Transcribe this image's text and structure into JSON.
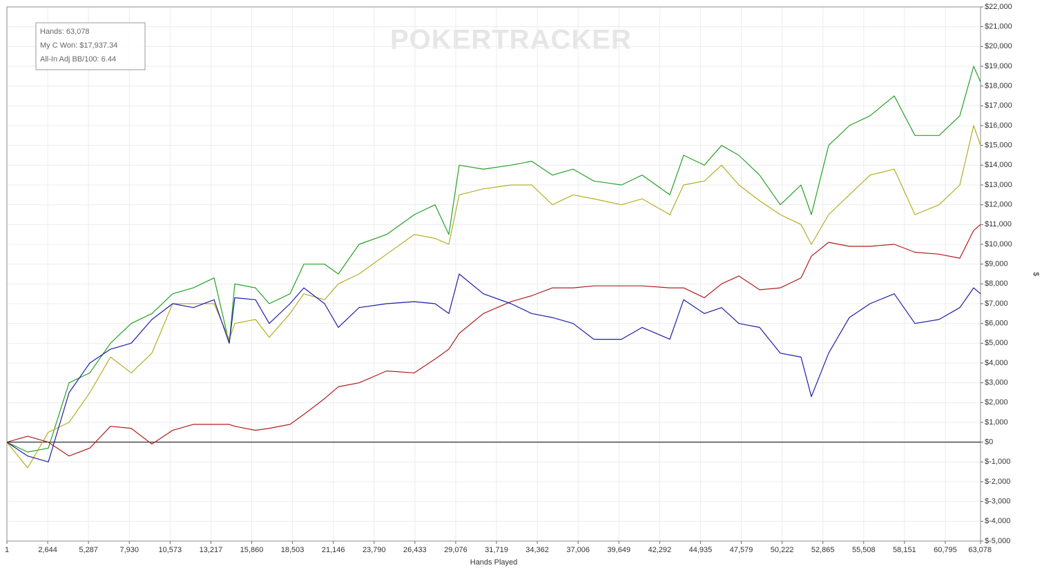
{
  "chart_data": {
    "type": "line",
    "xlabel": "Hands Played",
    "ylabel": "$",
    "watermark": "POKERTRACKER",
    "annotations": [
      "Hands: 63,078",
      "My C Won: $17,937.34",
      "All-In Adj BB/100: 6.44"
    ],
    "x": [
      1,
      1343,
      2685,
      4027,
      5369,
      6711,
      8053,
      9395,
      10737,
      12079,
      13421,
      14405,
      14763,
      16106,
      16995,
      18342,
      19236,
      20579,
      21474,
      22816,
      24605,
      26395,
      27737,
      28632,
      29303,
      30869,
      32658,
      34000,
      35342,
      36684,
      38026,
      39816,
      41158,
      42947,
      43842,
      45184,
      46302,
      47421,
      48763,
      50105,
      51447,
      52118,
      53237,
      54579,
      55921,
      57487,
      58829,
      60395,
      61737,
      62631,
      63078
    ],
    "series": [
      {
        "color": "#24a024",
        "values": [
          0,
          -500,
          -300,
          3000,
          3500,
          5000,
          6000,
          6500,
          7500,
          7800,
          8300,
          5000,
          8000,
          7800,
          7000,
          7500,
          9000,
          9000,
          8500,
          10000,
          10500,
          11500,
          12000,
          10500,
          14000,
          13800,
          14000,
          14200,
          13500,
          13800,
          13200,
          13000,
          13500,
          12500,
          14500,
          14000,
          15000,
          14500,
          13500,
          12000,
          13000,
          11500,
          15000,
          16000,
          16500,
          17500,
          15500,
          15500,
          16500,
          19000,
          18200
        ]
      },
      {
        "color": "#b3ad22",
        "values": [
          0,
          -1300,
          500,
          1000,
          2500,
          4300,
          3500,
          4500,
          7000,
          7000,
          7000,
          5200,
          6000,
          6200,
          5300,
          6500,
          7500,
          7200,
          8000,
          8500,
          9500,
          10500,
          10300,
          10000,
          12500,
          12800,
          13000,
          13000,
          12000,
          12500,
          12300,
          12000,
          12300,
          11500,
          13000,
          13200,
          14000,
          13000,
          12200,
          11500,
          11000,
          10000,
          11500,
          12500,
          13500,
          13800,
          11500,
          12000,
          13000,
          16000,
          15000
        ]
      },
      {
        "color": "#b01c1c",
        "values": [
          0,
          300,
          0,
          -700,
          -300,
          800,
          700,
          -100,
          600,
          900,
          900,
          900,
          800,
          600,
          700,
          900,
          1400,
          2200,
          2800,
          3000,
          3600,
          3500,
          4200,
          4700,
          5500,
          6500,
          7100,
          7400,
          7800,
          7800,
          7900,
          7900,
          7900,
          7800,
          7800,
          7300,
          8000,
          8400,
          7700,
          7800,
          8300,
          9400,
          10100,
          9900,
          9900,
          10000,
          9600,
          9500,
          9300,
          10700,
          11000
        ]
      },
      {
        "color": "#1c1ca8",
        "values": [
          0,
          -700,
          -1000,
          2500,
          4000,
          4700,
          5000,
          6200,
          7000,
          6800,
          7200,
          5000,
          7300,
          7200,
          6000,
          7000,
          7800,
          7000,
          5800,
          6800,
          7000,
          7100,
          7000,
          6500,
          8500,
          7500,
          7000,
          6500,
          6300,
          6000,
          5200,
          5200,
          5800,
          5200,
          7200,
          6500,
          6800,
          6000,
          5800,
          4500,
          4300,
          2300,
          4500,
          6300,
          7000,
          7500,
          6000,
          6200,
          6800,
          7800,
          7500
        ]
      }
    ],
    "xlim": [
      1,
      63078
    ],
    "ylim": [
      -5000,
      22000
    ],
    "grid": true,
    "xticks": [
      1,
      {
        "value": 2644,
        "label": "2,644"
      },
      {
        "value": 5287,
        "label": "5,287"
      },
      {
        "value": 7930,
        "label": "7,930"
      },
      {
        "value": 10573,
        "label": "10,573"
      },
      {
        "value": 13217,
        "label": "13,217"
      },
      {
        "value": 15860,
        "label": "15,860"
      },
      {
        "value": 18503,
        "label": "18,503"
      },
      {
        "value": 21146,
        "label": "21,146"
      },
      {
        "value": 23790,
        "label": "23,790"
      },
      {
        "value": 26433,
        "label": "26,433"
      },
      {
        "value": 29076,
        "label": "29,076"
      },
      {
        "value": 31719,
        "label": "31,719"
      },
      {
        "value": 34362,
        "label": "34,362"
      },
      {
        "value": 37006,
        "label": "37,006"
      },
      {
        "value": 39649,
        "label": "39,649"
      },
      {
        "value": 42292,
        "label": "42,292"
      },
      {
        "value": 44935,
        "label": "44,935"
      },
      {
        "value": 47579,
        "label": "47,579"
      },
      {
        "value": 50222,
        "label": "50,222"
      },
      {
        "value": 52865,
        "label": "52,865"
      },
      {
        "value": 55508,
        "label": "55,508"
      },
      {
        "value": 58151,
        "label": "58,151"
      },
      {
        "value": 60795,
        "label": "60,795"
      },
      {
        "value": 63078,
        "label": "63,078"
      }
    ],
    "yticks": [
      {
        "value": 22000,
        "label": "$22,000"
      },
      {
        "value": 21000,
        "label": "$21,000"
      },
      {
        "value": 20000,
        "label": "$20,000"
      },
      {
        "value": 19000,
        "label": "$19,000"
      },
      {
        "value": 18000,
        "label": "$18,000"
      },
      {
        "value": 17000,
        "label": "$17,000"
      },
      {
        "value": 16000,
        "label": "$16,000"
      },
      {
        "value": 15000,
        "label": "$15,000"
      },
      {
        "value": 14000,
        "label": "$14,000"
      },
      {
        "value": 13000,
        "label": "$13,000"
      },
      {
        "value": 12000,
        "label": "$12,000"
      },
      {
        "value": 11000,
        "label": "$11,000"
      },
      {
        "value": 10000,
        "label": "$10,000"
      },
      {
        "value": 9000,
        "label": "$9,000"
      },
      {
        "value": 8000,
        "label": "$8,000"
      },
      {
        "value": 7000,
        "label": "$7,000"
      },
      {
        "value": 6000,
        "label": "$6,000"
      },
      {
        "value": 5000,
        "label": "$5,000"
      },
      {
        "value": 4000,
        "label": "$4,000"
      },
      {
        "value": 3000,
        "label": "$3,000"
      },
      {
        "value": 2000,
        "label": "$2,000"
      },
      {
        "value": 1000,
        "label": "$1,000"
      },
      {
        "value": 0,
        "label": "$0"
      },
      {
        "value": -1000,
        "label": "$-1,000"
      },
      {
        "value": -2000,
        "label": "$-2,000"
      },
      {
        "value": -3000,
        "label": "$-3,000"
      },
      {
        "value": -4000,
        "label": "$-4,000"
      },
      {
        "value": -5000,
        "label": "$-5,000"
      }
    ]
  }
}
